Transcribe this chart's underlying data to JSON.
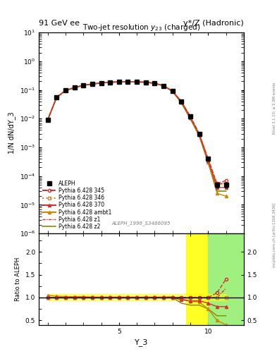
{
  "title_top": "91 GeV ee",
  "title_right": "γ*/Z (Hadronic)",
  "plot_title": "Two-jet resolution $y_{23}$ (charged)",
  "xlabel": "Y_3",
  "ylabel_main": "1/N dN/dY_3",
  "ylabel_ratio": "Ratio to ALEPH",
  "watermark": "ALEPH_1996_S3486095",
  "rivet_text": "Rivet 3.1.10; ≥ 2.9M events",
  "mcplots_text": "mcplots.cern.ch [arXiv:1306.3436]",
  "x_data": [
    1.0,
    1.5,
    2.0,
    2.5,
    3.0,
    3.5,
    4.0,
    4.5,
    5.0,
    5.5,
    6.0,
    6.5,
    7.0,
    7.5,
    8.0,
    8.5,
    9.0,
    9.5,
    10.0,
    10.5,
    11.0
  ],
  "aleph_y": [
    0.009,
    0.055,
    0.095,
    0.12,
    0.145,
    0.16,
    0.175,
    0.185,
    0.19,
    0.195,
    0.19,
    0.185,
    0.17,
    0.14,
    0.09,
    0.04,
    0.012,
    0.003,
    0.0004,
    5e-05,
    5e-05
  ],
  "aleph_yerr": [
    0.001,
    0.003,
    0.004,
    0.005,
    0.005,
    0.005,
    0.005,
    0.005,
    0.005,
    0.005,
    0.005,
    0.005,
    0.005,
    0.005,
    0.004,
    0.003,
    0.001,
    0.0003,
    5e-05,
    1e-05,
    1e-05
  ],
  "py345_y": [
    0.009,
    0.055,
    0.095,
    0.12,
    0.145,
    0.16,
    0.175,
    0.185,
    0.19,
    0.195,
    0.19,
    0.185,
    0.17,
    0.14,
    0.09,
    0.04,
    0.012,
    0.003,
    0.0004,
    5.5e-05,
    7e-05
  ],
  "py346_y": [
    0.009,
    0.055,
    0.095,
    0.12,
    0.145,
    0.16,
    0.175,
    0.185,
    0.19,
    0.195,
    0.19,
    0.185,
    0.17,
    0.14,
    0.09,
    0.04,
    0.012,
    0.003,
    0.0004,
    5e-05,
    5e-05
  ],
  "py370_y": [
    0.009,
    0.055,
    0.095,
    0.12,
    0.145,
    0.16,
    0.175,
    0.185,
    0.19,
    0.195,
    0.19,
    0.185,
    0.17,
    0.14,
    0.09,
    0.038,
    0.011,
    0.0028,
    0.00035,
    4e-05,
    4e-05
  ],
  "pyambt1_y": [
    0.0095,
    0.057,
    0.097,
    0.122,
    0.147,
    0.162,
    0.177,
    0.187,
    0.192,
    0.197,
    0.192,
    0.187,
    0.172,
    0.142,
    0.092,
    0.039,
    0.011,
    0.0027,
    0.0003,
    2.5e-05,
    2e-05
  ],
  "pyz1_y": [
    0.009,
    0.055,
    0.095,
    0.12,
    0.145,
    0.16,
    0.175,
    0.185,
    0.19,
    0.195,
    0.19,
    0.185,
    0.17,
    0.14,
    0.09,
    0.04,
    0.012,
    0.003,
    0.0004,
    5e-05,
    6e-05
  ],
  "pyz2_y": [
    0.009,
    0.055,
    0.095,
    0.12,
    0.145,
    0.16,
    0.175,
    0.185,
    0.19,
    0.195,
    0.19,
    0.185,
    0.17,
    0.14,
    0.09,
    0.035,
    0.01,
    0.0025,
    0.0003,
    3e-05,
    3e-05
  ],
  "ratio_py345": [
    1.0,
    1.0,
    1.0,
    1.0,
    1.0,
    1.0,
    1.0,
    1.0,
    1.0,
    1.0,
    1.0,
    1.0,
    1.0,
    1.0,
    1.0,
    1.0,
    1.0,
    1.0,
    1.0,
    1.1,
    1.4
  ],
  "ratio_py346": [
    1.0,
    1.0,
    1.0,
    1.0,
    1.0,
    1.0,
    1.0,
    1.0,
    1.0,
    1.0,
    1.0,
    1.0,
    1.0,
    1.0,
    1.0,
    1.0,
    1.0,
    1.0,
    1.0,
    1.0,
    1.0
  ],
  "ratio_py370": [
    1.0,
    1.0,
    1.0,
    1.0,
    1.0,
    1.0,
    1.0,
    1.0,
    1.0,
    1.0,
    1.0,
    1.0,
    1.0,
    1.0,
    1.0,
    0.95,
    0.92,
    0.93,
    0.875,
    0.8,
    0.8
  ],
  "ratio_pyambt1": [
    1.05,
    1.03,
    1.02,
    1.02,
    1.02,
    1.01,
    1.01,
    1.01,
    1.01,
    1.01,
    1.01,
    1.01,
    1.01,
    1.01,
    1.02,
    0.975,
    0.92,
    0.9,
    0.75,
    0.5,
    0.4
  ],
  "ratio_pyz1": [
    1.0,
    1.0,
    1.0,
    1.0,
    1.0,
    1.0,
    1.0,
    1.0,
    1.0,
    1.0,
    1.0,
    1.0,
    1.0,
    1.0,
    1.0,
    1.0,
    1.0,
    1.0,
    1.0,
    1.0,
    1.2
  ],
  "ratio_pyz2": [
    1.0,
    1.0,
    1.0,
    1.0,
    1.0,
    1.0,
    1.0,
    1.0,
    1.0,
    1.0,
    1.0,
    1.0,
    1.0,
    1.0,
    1.0,
    0.875,
    0.833,
    0.833,
    0.75,
    0.6,
    0.6
  ],
  "color_aleph": "#000000",
  "color_py345": "#cc3333",
  "color_py346": "#cc8833",
  "color_py370": "#cc3333",
  "color_pyambt1": "#cc8800",
  "color_pyz1": "#cc3333",
  "color_pyz2": "#888800",
  "color_yellow": "#ffff00",
  "color_green": "#90ee90",
  "bg_color": "#ffffff",
  "ylim_main": [
    1e-06,
    10.0
  ],
  "ylim_ratio": [
    0.4,
    2.4
  ],
  "xlim_main": [
    0.5,
    12.0
  ],
  "xlim_ratio": [
    0.5,
    12.0
  ],
  "yticks_ratio": [
    0.5,
    1.0,
    1.5,
    2.0
  ],
  "band_yellow_x1": 8.75,
  "band_yellow_x2": 12.0,
  "band_green_x1": 10.0,
  "band_green_x2": 12.0
}
